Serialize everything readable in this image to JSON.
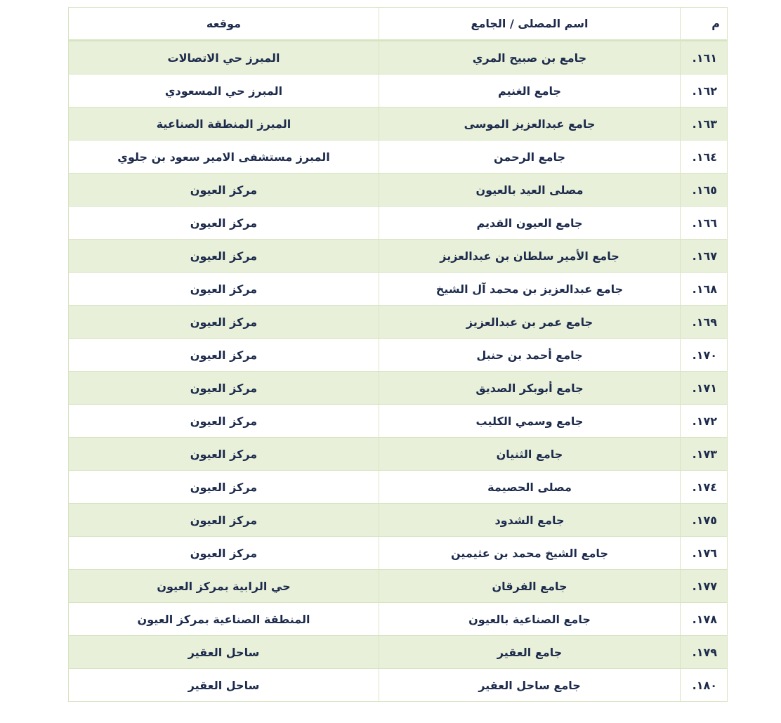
{
  "table": {
    "headers": {
      "number": "م",
      "name": "اسم المصلى / الجامع",
      "location": "موقعه"
    },
    "rows": [
      {
        "number": "١٦١.",
        "name": "جامع بن صبيح المري",
        "location": "المبرز حي الاتصالات"
      },
      {
        "number": "١٦٢.",
        "name": "جامع الغنيم",
        "location": "المبرز حي المسعودي"
      },
      {
        "number": "١٦٣.",
        "name": "جامع عبدالعزيز الموسى",
        "location": "المبرز المنطقة الصناعية"
      },
      {
        "number": "١٦٤.",
        "name": "جامع الرحمن",
        "location": "المبرز مستشفى الامير سعود بن جلوي"
      },
      {
        "number": "١٦٥.",
        "name": "مصلى العيد بالعيون",
        "location": "مركز العيون"
      },
      {
        "number": "١٦٦.",
        "name": "جامع العيون القديم",
        "location": "مركز العيون"
      },
      {
        "number": "١٦٧.",
        "name": "جامع الأمير سلطان بن عبدالعزيز",
        "location": "مركز العيون"
      },
      {
        "number": "١٦٨.",
        "name": "جامع عبدالعزيز بن محمد آل الشيخ",
        "location": "مركز العيون"
      },
      {
        "number": "١٦٩.",
        "name": "جامع عمر بن عبدالعزيز",
        "location": "مركز العيون"
      },
      {
        "number": "١٧٠.",
        "name": "جامع  أحمد بن حنبل",
        "location": "مركز العيون"
      },
      {
        "number": "١٧١.",
        "name": "جامع أبوبكر الصديق",
        "location": "مركز العيون"
      },
      {
        "number": "١٧٢.",
        "name": "جامع وسمي الكليب",
        "location": "مركز العيون"
      },
      {
        "number": "١٧٣.",
        "name": "جامع الثنيان",
        "location": "مركز العيون"
      },
      {
        "number": "١٧٤.",
        "name": "مصلى الحصيمة",
        "location": "مركز العيون"
      },
      {
        "number": "١٧٥.",
        "name": "جامع الشدود",
        "location": "مركز العيون"
      },
      {
        "number": "١٧٦.",
        "name": "جامع الشيخ محمد بن عثيمين",
        "location": "مركز العيون"
      },
      {
        "number": "١٧٧.",
        "name": "جامع الفرقان",
        "location": "حي الرابية بمركز العيون"
      },
      {
        "number": "١٧٨.",
        "name": "جامع الصناعية بالعيون",
        "location": "المنطقة الصناعية بمركز العيون"
      },
      {
        "number": "١٧٩.",
        "name": "جامع العقير",
        "location": "ساحل العقير"
      },
      {
        "number": "١٨٠.",
        "name": "جامع ساحل العقير",
        "location": "ساحل العقير"
      }
    ]
  },
  "colors": {
    "text": "#1d2b4c",
    "row_alt": "#e8f0da",
    "border": "#d7e4c2"
  }
}
